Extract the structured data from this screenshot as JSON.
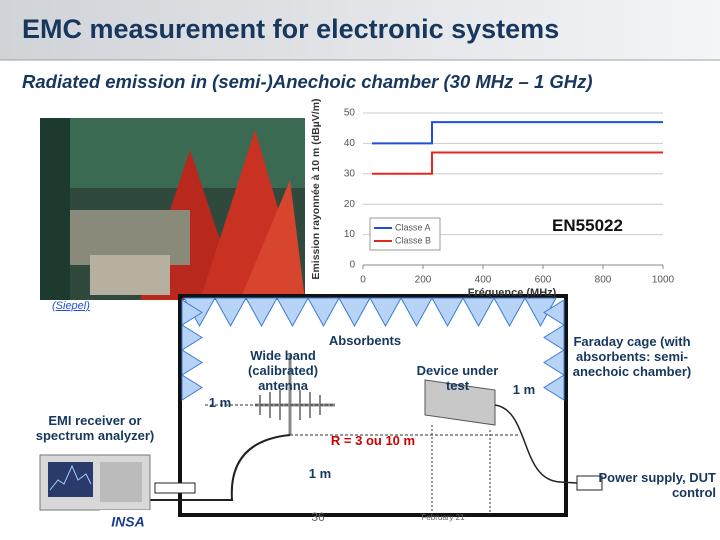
{
  "header": {
    "title": "EMC measurement for electronic systems"
  },
  "subtitle": "Radiated emission in (semi-)Anechoic chamber (30 MHz – 1 GHz)",
  "photo_caption": "(Siepel)",
  "chart_data": {
    "type": "line",
    "x_label": "Fréquence (MHz)",
    "y_label": "Emission rayonnée à 10 m (dBµV/m)",
    "x": [
      30,
      230,
      230,
      1000
    ],
    "series": [
      {
        "name": "Classe A",
        "color": "#1f4ed8",
        "values": [
          40,
          40,
          47,
          47
        ]
      },
      {
        "name": "Classe B",
        "color": "#e0281e",
        "values": [
          30,
          30,
          37,
          37
        ]
      }
    ],
    "xlim": [
      0,
      1000
    ],
    "xticks": [
      0,
      200,
      400,
      600,
      800,
      1000
    ],
    "ylim": [
      0,
      50
    ],
    "yticks": [
      0,
      10,
      20,
      30,
      40,
      50
    ],
    "grid": true,
    "annotation": "EN55022"
  },
  "diagram": {
    "absorbents": "Absorbents",
    "antenna": "Wide band (calibrated) antenna",
    "dut": "Device under test",
    "antenna_height": "1 m",
    "dut_distance": "1 m",
    "dut_height": "1 m",
    "receiver": "EMI receiver or spectrum analyzer)",
    "range": "R = 3 ou 10 m",
    "cage": "Faraday cage (with absorbents: semi-anechoic chamber)",
    "power": "Power supply, DUT control"
  },
  "footer": {
    "page": "36",
    "date": "February 21",
    "logo": "INSA"
  }
}
